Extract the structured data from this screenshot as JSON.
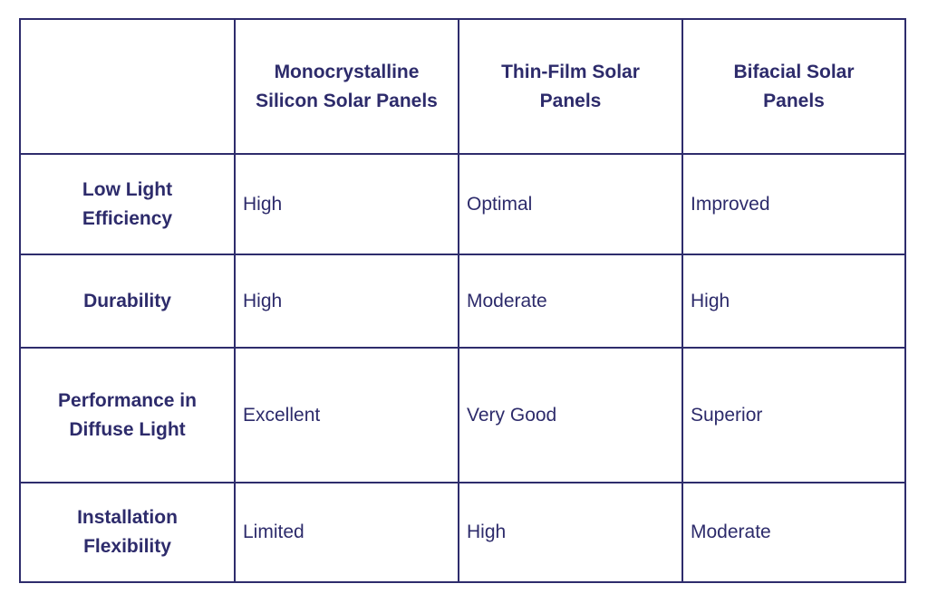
{
  "table": {
    "header": [
      [
        "Monocrystalline",
        "Silicon Solar Panels"
      ],
      [
        "Thin-Film Solar",
        "Panels"
      ],
      [
        "Bifacial Solar",
        "Panels"
      ]
    ],
    "rows": [
      {
        "label": [
          "Low Light",
          "Efficiency"
        ],
        "cells": [
          "High",
          "Optimal",
          "Improved"
        ]
      },
      {
        "label": [
          "Durability"
        ],
        "cells": [
          "High",
          "Moderate",
          "High"
        ]
      },
      {
        "label": [
          "Performance in",
          "Diffuse Light"
        ],
        "cells": [
          "Excellent",
          "Very Good",
          "Superior"
        ]
      },
      {
        "label": [
          "Installation",
          "Flexibility"
        ],
        "cells": [
          "Limited",
          "High",
          "Moderate"
        ]
      }
    ]
  }
}
